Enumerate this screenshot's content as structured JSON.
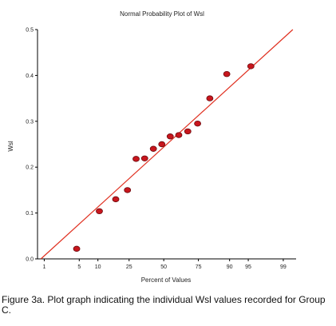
{
  "chart_data": {
    "type": "scatter",
    "title": "Normal Probability Plot of Wsl",
    "xlabel": "Percent of Values",
    "ylabel": "Wsl",
    "x_scale": "normal-probability",
    "xticks": [
      1,
      5,
      10,
      25,
      50,
      75,
      90,
      95,
      99
    ],
    "xlim": [
      0.7,
      99.5
    ],
    "ylim": [
      0.0,
      0.5
    ],
    "yticks": [
      "0.0",
      "0.1",
      "0.2",
      "0.3",
      "0.4",
      "0.5"
    ],
    "grid": false,
    "marker_color": "#c8161d",
    "line_color": "#e03020",
    "fit_line": [
      [
        0.84,
        0.0
      ],
      [
        99.4,
        0.5
      ]
    ],
    "points": [
      {
        "x": 4.5,
        "y": 0.022
      },
      {
        "x": 10.5,
        "y": 0.104
      },
      {
        "x": 17.5,
        "y": 0.13
      },
      {
        "x": 24.0,
        "y": 0.15
      },
      {
        "x": 29.5,
        "y": 0.218
      },
      {
        "x": 35.5,
        "y": 0.219
      },
      {
        "x": 42.0,
        "y": 0.24
      },
      {
        "x": 48.5,
        "y": 0.25
      },
      {
        "x": 55.0,
        "y": 0.267
      },
      {
        "x": 61.5,
        "y": 0.27
      },
      {
        "x": 68.0,
        "y": 0.278
      },
      {
        "x": 74.5,
        "y": 0.295
      },
      {
        "x": 81.5,
        "y": 0.35
      },
      {
        "x": 89.0,
        "y": 0.403
      },
      {
        "x": 95.5,
        "y": 0.42
      }
    ]
  },
  "caption": "Figure 3a. Plot graph indicating the individual Wsl values recorded for Group C."
}
